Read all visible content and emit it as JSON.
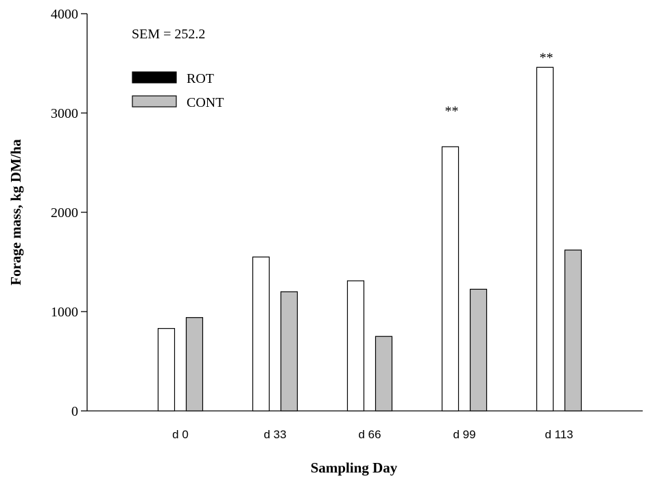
{
  "chart_data": {
    "type": "bar",
    "xlabel": "Sampling Day",
    "ylabel": "Forage mass, kg DM/ha",
    "ylim": [
      0,
      4000
    ],
    "yticks": [
      0,
      1000,
      2000,
      3000,
      4000
    ],
    "categories": [
      "d 0",
      "d 33",
      "d 66",
      "d 99",
      "d 113"
    ],
    "series": [
      {
        "name": "ROT",
        "values": [
          830,
          1550,
          1310,
          2660,
          3460
        ],
        "color": "#ffffff",
        "legend_swatch": "#000000"
      },
      {
        "name": "CONT",
        "values": [
          940,
          1200,
          750,
          1225,
          1620
        ],
        "color": "#c0c0c0",
        "legend_swatch": "#c0c0c0"
      }
    ],
    "annotation_text": "SEM = 252.2",
    "significance": [
      {
        "category": "d 99",
        "label": "**"
      },
      {
        "category": "d 113",
        "label": "**"
      }
    ],
    "legend_position": "top-left",
    "grid": false
  }
}
